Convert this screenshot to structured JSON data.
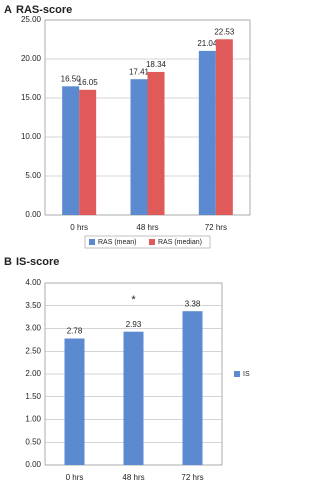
{
  "chart_data": [
    {
      "type": "bar",
      "panel": "A",
      "title": "RAS-score",
      "categories": [
        "0 hrs",
        "48 hrs",
        "72 hrs"
      ],
      "series": [
        {
          "name": "RAS (mean)",
          "color": "#5b8ad0",
          "values": [
            16.5,
            17.41,
            21.04
          ],
          "value_labels": [
            "16.50",
            "17.41",
            "21.04"
          ]
        },
        {
          "name": "RAS (median)",
          "color": "#e05a5a",
          "values": [
            16.05,
            18.34,
            22.53
          ],
          "value_labels": [
            "16.05",
            "18.34",
            "22.53"
          ]
        }
      ],
      "ylim": [
        0,
        25
      ],
      "yticks": [
        {
          "value": 0,
          "label": "0.00"
        },
        {
          "value": 5,
          "label": "5.00"
        },
        {
          "value": 10,
          "label": "10.00"
        },
        {
          "value": 15,
          "label": "15.00"
        },
        {
          "value": 20,
          "label": "20.00"
        },
        {
          "value": 25,
          "label": "25.00"
        }
      ],
      "grid": true,
      "legend": "bottom"
    },
    {
      "type": "bar",
      "panel": "B",
      "title": "IS-score",
      "categories": [
        "0 hrs",
        "48 hrs",
        "72 hrs"
      ],
      "series": [
        {
          "name": "IS",
          "color": "#5b8ad0",
          "values": [
            2.78,
            2.93,
            3.38
          ],
          "value_labels": [
            "2.78",
            "2.93",
            "3.38"
          ]
        }
      ],
      "ylim": [
        0,
        4
      ],
      "yticks": [
        {
          "value": 0,
          "label": "0.00"
        },
        {
          "value": 0.5,
          "label": "0.50"
        },
        {
          "value": 1,
          "label": "1.00"
        },
        {
          "value": 1.5,
          "label": "1.50"
        },
        {
          "value": 2,
          "label": "2.00"
        },
        {
          "value": 2.5,
          "label": "2.50"
        },
        {
          "value": 3,
          "label": "3.00"
        },
        {
          "value": 3.5,
          "label": "3.50"
        },
        {
          "value": 4,
          "label": "4.00"
        }
      ],
      "annotation": "*",
      "grid": true,
      "legend": "right"
    }
  ]
}
